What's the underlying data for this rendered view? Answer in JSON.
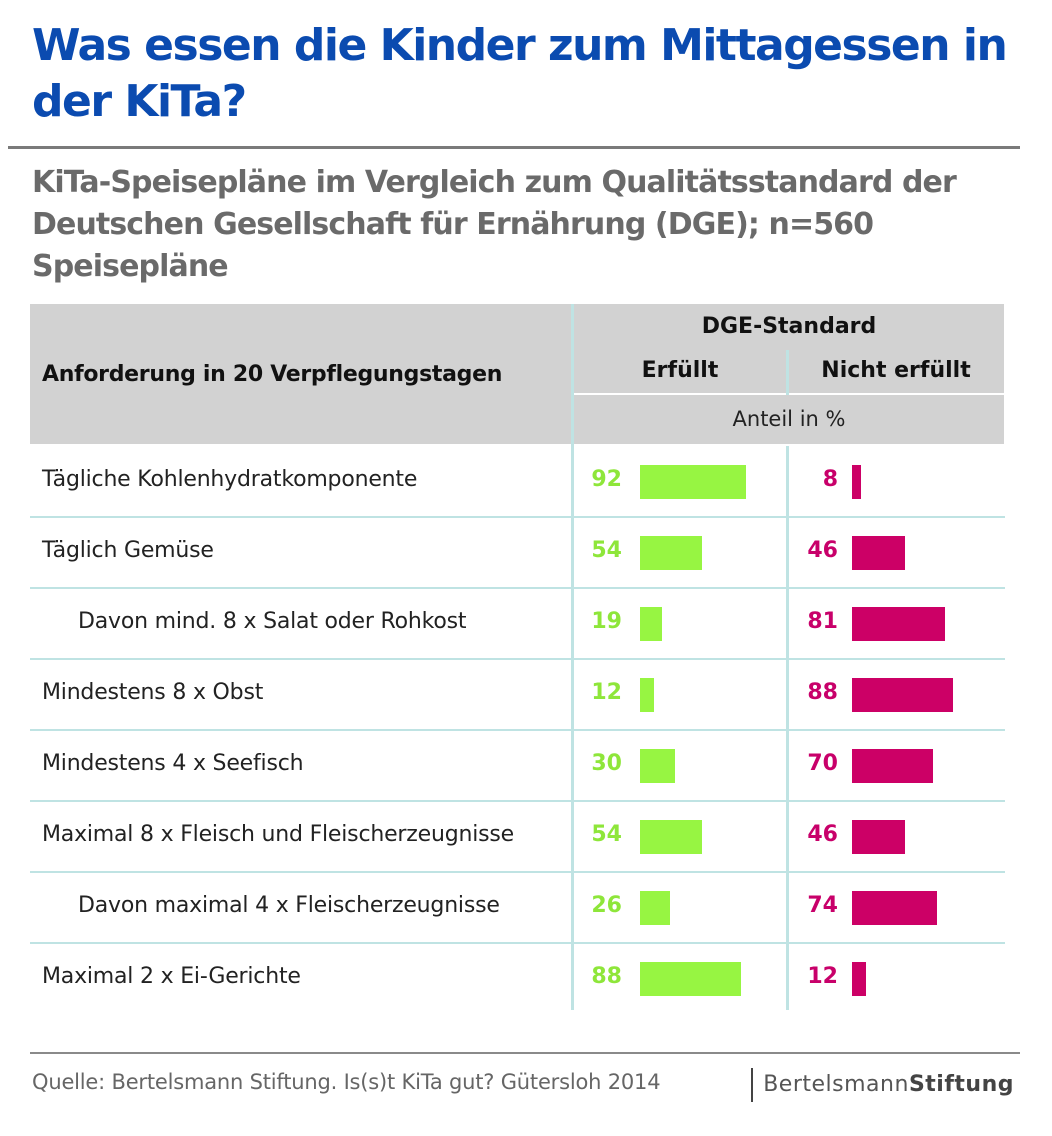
{
  "title": "Was essen die Kinder zum Mittagessen in der KiTa?",
  "subtitle": "KiTa-Speisepläne im Vergleich zum Qualitätsstandard der Deutschen Gesellschaft für Ernährung (DGE); n=560 Speisepläne",
  "header": {
    "requirement": "Anforderung in 20 Verpflegungstagen",
    "standard": "DGE-Standard",
    "fulfilled": "Erfüllt",
    "not_fulfilled": "Nicht erfüllt",
    "unit": "Anteil in %"
  },
  "colors": {
    "fulfilled": "#97f542",
    "not_fulfilled": "#cc0066",
    "title": "#0b4bb0"
  },
  "chart_data": {
    "type": "bar",
    "categories": [
      "Tägliche Kohlenhydratkomponente",
      "Täglich Gemüse",
      "Davon mind. 8 x Salat oder Rohkost",
      "Mindestens 8 x Obst",
      "Mindestens 4 x Seefisch",
      "Maximal 8 x Fleisch und Fleischerzeugnisse",
      "Davon maximal 4 x Fleischerzeugnisse",
      "Maximal 2 x Ei-Gerichte"
    ],
    "indented": [
      false,
      false,
      true,
      false,
      false,
      false,
      true,
      false
    ],
    "series": [
      {
        "name": "Erfüllt",
        "values": [
          92,
          54,
          19,
          12,
          30,
          54,
          26,
          88
        ]
      },
      {
        "name": "Nicht erfüllt",
        "values": [
          8,
          46,
          81,
          88,
          70,
          46,
          74,
          12
        ]
      }
    ],
    "xlim": [
      0,
      100
    ]
  },
  "source": "Quelle: Bertelsmann Stiftung. Is(s)t KiTa gut? Gütersloh 2014",
  "logo": {
    "part1": "Bertelsmann",
    "part2": "Stiftung"
  }
}
